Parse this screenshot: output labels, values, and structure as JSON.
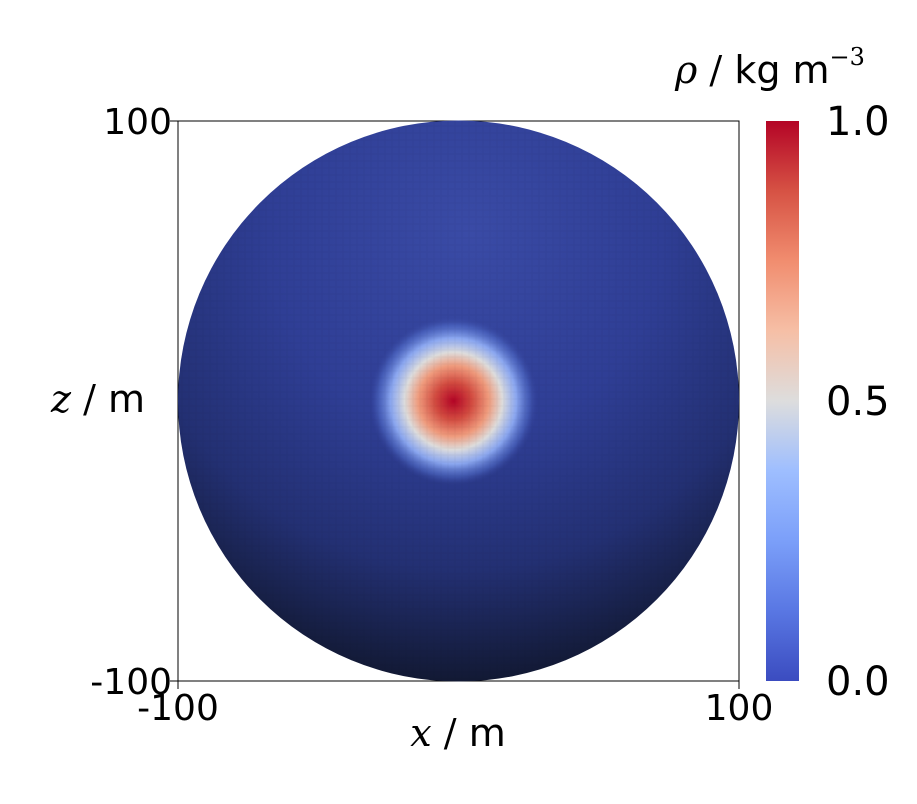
{
  "chart_data": {
    "type": "heatmap",
    "title": "",
    "x_axis": {
      "variable": "x",
      "separator": " / ",
      "unit": "m",
      "tick_labels": [
        "-100",
        "100"
      ],
      "range": [
        -100,
        100
      ]
    },
    "z_axis": {
      "variable": "z",
      "separator": " / ",
      "unit": "m",
      "tick_labels": [
        "-100",
        "100"
      ],
      "range": [
        -100,
        100
      ]
    },
    "colorbar": {
      "variable": "ρ",
      "separator": " / ",
      "unit": "kg m",
      "unit_exponent": "−3",
      "tick_labels": [
        "0.0",
        "0.5",
        "1.0"
      ],
      "range": [
        0.0,
        1.0
      ],
      "colormap": "coolwarm",
      "low_color": "#3b4cc0",
      "mid_color": "#dddddd",
      "high_color": "#b40426"
    },
    "field": {
      "shape": "sphere",
      "sphere_radius": 100,
      "background_density": 0.0,
      "peak_density": 1.0,
      "peak_center": {
        "x": 0,
        "z": 0
      },
      "peak_radius": 30
    },
    "grid": false
  }
}
